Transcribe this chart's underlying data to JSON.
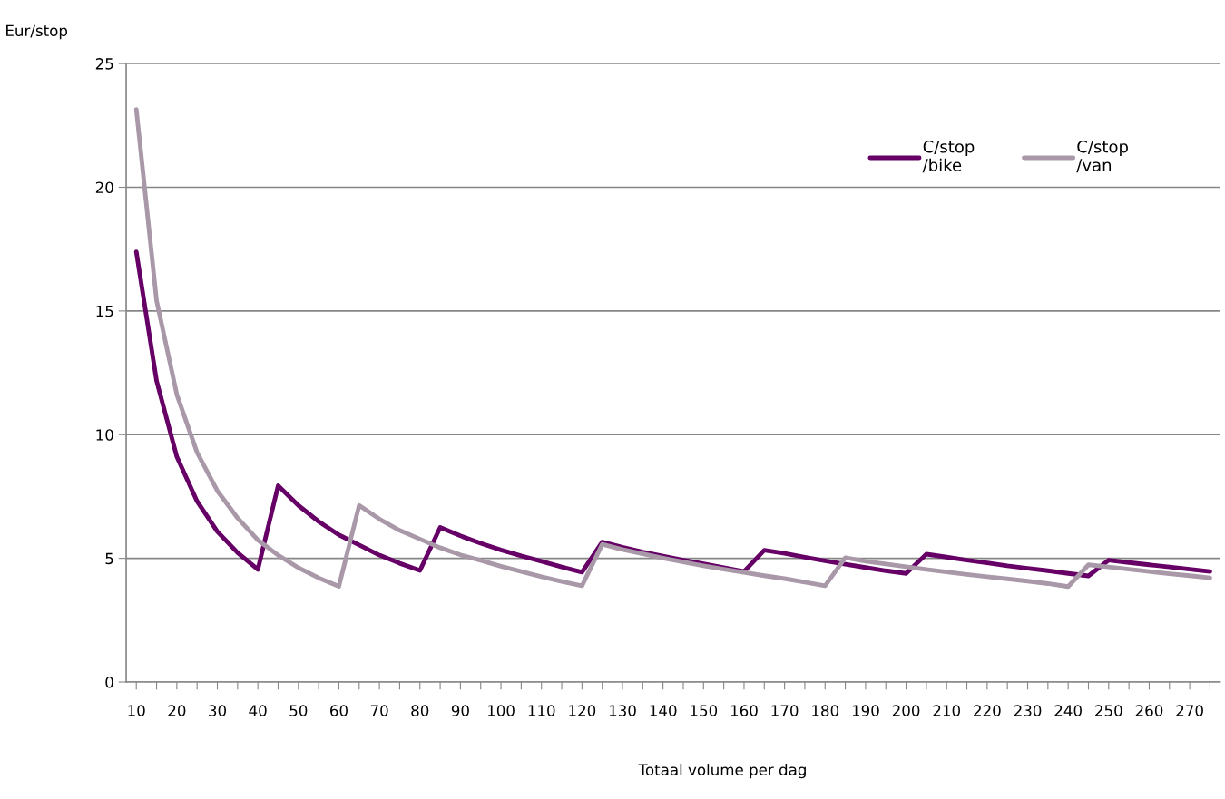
{
  "chart_data": {
    "type": "line",
    "ylabel": "Eur/stop",
    "xlabel": "Totaal volume per dag",
    "categories": [
      "10",
      null,
      "20",
      null,
      "30",
      null,
      "40",
      null,
      "50",
      null,
      "60",
      null,
      "70",
      null,
      "80",
      null,
      "90",
      null,
      "100",
      null,
      "110",
      null,
      "120",
      null,
      "130",
      null,
      "140",
      null,
      "150",
      null,
      "160",
      null,
      "170",
      null,
      "180",
      null,
      "190",
      null,
      "200",
      null,
      "210",
      null,
      "220",
      null,
      "230",
      null,
      "240",
      null,
      "250",
      null,
      "260",
      null,
      "270",
      null
    ],
    "series": [
      {
        "name": "C/stop\n/bike",
        "color": "#660066",
        "values": [
          17.39,
          12.18,
          9.11,
          7.31,
          6.08,
          5.23,
          4.55,
          7.94,
          7.14,
          6.49,
          5.95,
          5.54,
          5.13,
          4.8,
          4.51,
          6.25,
          5.91,
          5.61,
          5.34,
          5.1,
          4.88,
          4.65,
          4.44,
          5.66,
          5.45,
          5.26,
          5.09,
          4.93,
          4.78,
          4.62,
          4.47,
          5.33,
          5.2,
          5.05,
          4.9,
          4.76,
          4.63,
          4.5,
          4.39,
          5.17,
          5.05,
          4.93,
          4.82,
          4.7,
          4.6,
          4.5,
          4.39,
          4.29,
          4.93,
          4.83,
          4.74,
          4.65,
          4.56,
          4.47
        ]
      },
      {
        "name": "C/stop\n/van",
        "color": "#a898a8",
        "values": [
          23.15,
          15.42,
          11.62,
          9.28,
          7.73,
          6.63,
          5.74,
          5.13,
          4.62,
          4.21,
          3.87,
          7.14,
          6.59,
          6.13,
          5.78,
          5.43,
          5.14,
          4.92,
          4.68,
          4.47,
          4.26,
          4.07,
          3.89,
          5.57,
          5.36,
          5.18,
          5.01,
          4.85,
          4.7,
          4.56,
          4.43,
          4.3,
          4.18,
          4.04,
          3.89,
          5.03,
          4.88,
          4.77,
          4.66,
          4.55,
          4.45,
          4.35,
          4.26,
          4.17,
          4.08,
          3.98,
          3.86,
          4.74,
          4.65,
          4.56,
          4.47,
          4.38,
          4.3,
          4.21
        ]
      }
    ],
    "ylim": [
      0,
      25
    ],
    "yticks": [
      0,
      5,
      10,
      15,
      20,
      25
    ],
    "grid": "y",
    "legend": "top right",
    "marker": "none",
    "line_style": "solid"
  }
}
